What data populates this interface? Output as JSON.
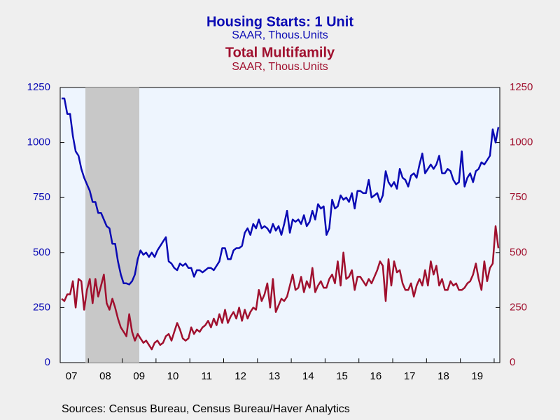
{
  "chart_data": {
    "type": "line",
    "series": [
      {
        "name": "Housing Starts: 1 Unit",
        "subtitle": "SAAR, Thous.Units",
        "color": "#0a0ab4",
        "values": [
          1200,
          1200,
          1130,
          1130,
          1030,
          960,
          940,
          880,
          840,
          810,
          780,
          730,
          730,
          680,
          680,
          650,
          620,
          610,
          540,
          540,
          460,
          400,
          360,
          360,
          355,
          370,
          400,
          470,
          510,
          490,
          500,
          480,
          500,
          480,
          510,
          530,
          550,
          570,
          460,
          450,
          430,
          420,
          450,
          440,
          450,
          430,
          430,
          390,
          420,
          420,
          410,
          420,
          430,
          430,
          420,
          440,
          460,
          520,
          520,
          470,
          470,
          510,
          520,
          520,
          530,
          590,
          610,
          580,
          630,
          610,
          650,
          610,
          620,
          610,
          590,
          630,
          600,
          620,
          580,
          630,
          690,
          590,
          650,
          640,
          650,
          630,
          670,
          620,
          640,
          690,
          650,
          720,
          700,
          710,
          580,
          610,
          740,
          700,
          710,
          760,
          740,
          750,
          730,
          770,
          700,
          780,
          780,
          770,
          770,
          830,
          750,
          760,
          770,
          730,
          760,
          870,
          820,
          800,
          820,
          790,
          880,
          840,
          830,
          800,
          850,
          860,
          840,
          900,
          950,
          860,
          880,
          900,
          880,
          900,
          940,
          860,
          860,
          880,
          870,
          830,
          810,
          820,
          960,
          800,
          840,
          860,
          820,
          870,
          880,
          910,
          900,
          920,
          940,
          1060,
          1000,
          1070
        ]
      },
      {
        "name": "Total Multifamily",
        "subtitle": "SAAR, Thous.Units",
        "color": "#a0102e",
        "axis": "y2",
        "values": [
          290,
          280,
          310,
          310,
          370,
          250,
          380,
          370,
          240,
          330,
          380,
          270,
          380,
          300,
          350,
          400,
          270,
          240,
          290,
          250,
          200,
          160,
          140,
          120,
          220,
          140,
          100,
          130,
          110,
          90,
          100,
          80,
          60,
          90,
          100,
          80,
          90,
          120,
          130,
          100,
          140,
          180,
          150,
          110,
          100,
          110,
          160,
          130,
          150,
          140,
          160,
          170,
          190,
          160,
          200,
          170,
          220,
          180,
          240,
          180,
          210,
          230,
          200,
          250,
          190,
          240,
          200,
          230,
          250,
          240,
          330,
          280,
          310,
          360,
          250,
          380,
          230,
          260,
          290,
          280,
          300,
          350,
          400,
          330,
          340,
          390,
          320,
          370,
          340,
          430,
          320,
          350,
          370,
          340,
          340,
          380,
          400,
          360,
          460,
          350,
          500,
          380,
          390,
          420,
          330,
          390,
          390,
          370,
          350,
          380,
          360,
          390,
          420,
          460,
          440,
          280,
          470,
          350,
          460,
          410,
          420,
          360,
          330,
          330,
          360,
          300,
          350,
          380,
          350,
          420,
          350,
          460,
          400,
          440,
          350,
          380,
          330,
          330,
          370,
          350,
          360,
          330,
          330,
          340,
          360,
          370,
          400,
          450,
          380,
          330,
          460,
          370,
          430,
          450,
          620,
          520
        ]
      }
    ],
    "categories": [
      null,
      null,
      null,
      null,
      "07",
      null,
      null,
      null,
      null,
      null,
      null,
      null,
      null,
      null,
      null,
      null,
      "08",
      null,
      null,
      null,
      null,
      null,
      null,
      null,
      null,
      null,
      null,
      null,
      "09",
      null,
      null,
      null,
      null,
      null,
      null,
      null,
      null,
      null,
      null,
      null,
      "10",
      null,
      null,
      null,
      null,
      null,
      null,
      null,
      null,
      null,
      null,
      null,
      "11",
      null,
      null,
      null,
      null,
      null,
      null,
      null,
      null,
      null,
      null,
      null,
      "12",
      null,
      null,
      null,
      null,
      null,
      null,
      null,
      null,
      null,
      null,
      null,
      "13",
      null,
      null,
      null,
      null,
      null,
      null,
      null,
      null,
      null,
      null,
      null,
      "14",
      null,
      null,
      null,
      null,
      null,
      null,
      null,
      null,
      null,
      null,
      null,
      "15",
      null,
      null,
      null,
      null,
      null,
      null,
      null,
      null,
      null,
      null,
      null,
      "16",
      null,
      null,
      null,
      null,
      null,
      null,
      null,
      null,
      null,
      null,
      null,
      "17",
      null,
      null,
      null,
      null,
      null,
      null,
      null,
      null,
      null,
      null,
      null,
      "18",
      null,
      null,
      null,
      null,
      null,
      null,
      null,
      null,
      null,
      null,
      null,
      "19",
      null,
      null,
      null,
      null,
      null,
      null,
      null
    ],
    "ylim": [
      0,
      1250
    ],
    "yticks": [
      0,
      250,
      500,
      750,
      1000,
      1250
    ],
    "y2lim": [
      0,
      1250
    ],
    "y2ticks": [
      0,
      250,
      500,
      750,
      1000,
      1250
    ],
    "source": "Sources:  Census Bureau, Census Bureau/Haver Analytics"
  }
}
